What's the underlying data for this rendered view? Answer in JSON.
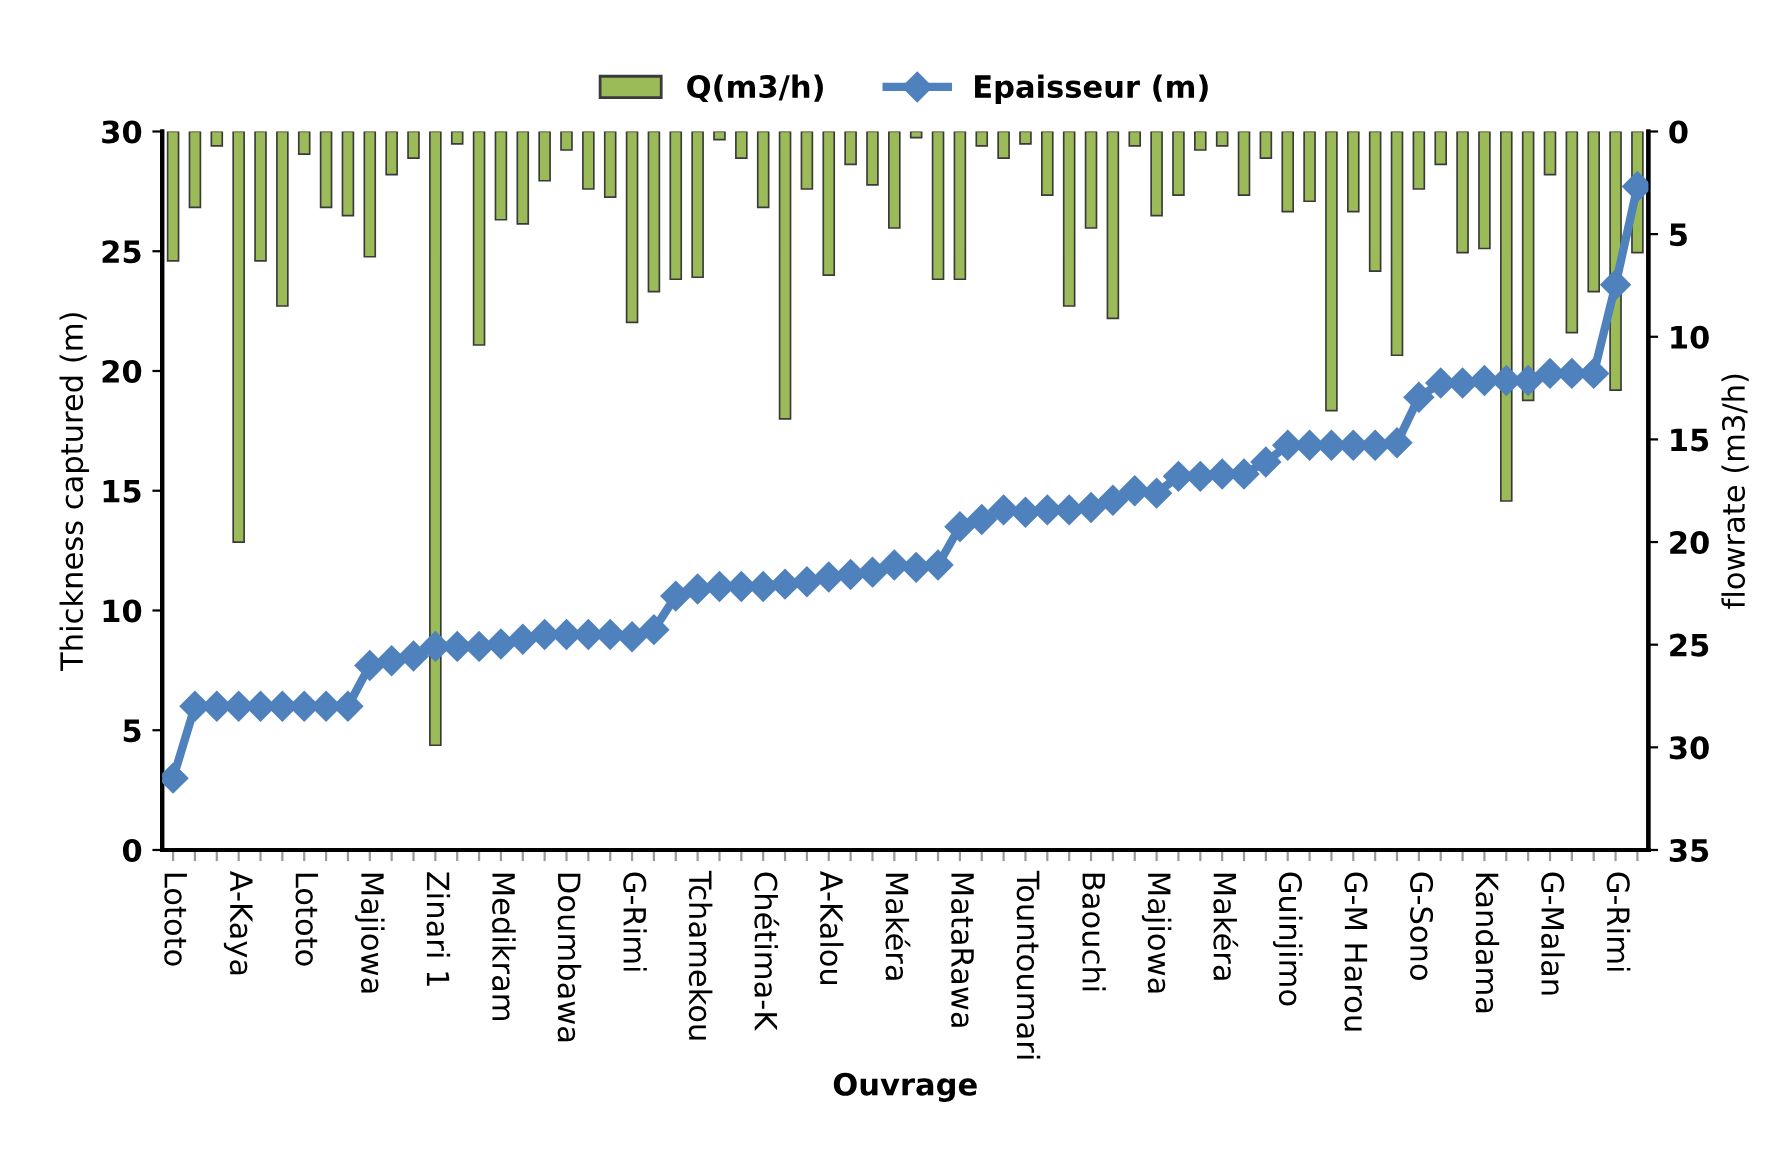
{
  "chart_data": {
    "type": "bar",
    "xlabel": "Ouvrage",
    "ylabel": "Thickness captured (m)",
    "y2label": "flowrate (m3/h)",
    "categories": [
      "Lototo",
      null,
      null,
      "A-Kaya",
      null,
      null,
      "Lototo",
      null,
      null,
      "Majiowa",
      null,
      null,
      "Zinari 1",
      null,
      null,
      "Medikram",
      null,
      null,
      "Doumbawa",
      null,
      null,
      "G-Rimi",
      null,
      null,
      "Tchamekou",
      null,
      null,
      "Chétima-K",
      null,
      null,
      "A-Kalou",
      null,
      null,
      "Makéra",
      null,
      null,
      "MataRawa",
      null,
      null,
      "Tountoumari",
      null,
      null,
      "Baouchi",
      null,
      null,
      "Majiowa",
      null,
      null,
      "Makéra",
      null,
      null,
      "Guinjimo",
      null,
      null,
      "G-M Harou",
      null,
      null,
      "G-Sono",
      null,
      null,
      "Kandama",
      null,
      null,
      "G-Malan",
      null,
      null,
      "G-Rimi",
      null
    ],
    "series": [
      {
        "name": "Q(m3/h)",
        "axis": "y2",
        "color": "#9bbb59",
        "values": [
          6.3,
          3.7,
          0.7,
          20.0,
          6.3,
          8.5,
          1.1,
          3.7,
          4.1,
          6.1,
          2.1,
          1.3,
          29.9,
          0.6,
          10.4,
          4.3,
          4.5,
          2.4,
          0.9,
          2.8,
          3.2,
          9.3,
          7.8,
          7.2,
          7.1,
          0.4,
          1.3,
          3.7,
          14.0,
          2.8,
          7.0,
          1.6,
          2.6,
          4.7,
          0.3,
          7.2,
          7.2,
          0.7,
          1.3,
          0.6,
          3.1,
          8.5,
          4.7,
          9.1,
          0.7,
          4.1,
          3.1,
          0.9,
          0.7,
          3.1,
          1.3,
          3.9,
          3.4,
          13.6,
          3.9,
          6.8,
          10.9,
          2.8,
          1.6,
          5.9,
          5.7,
          18.0,
          13.1,
          2.1,
          9.8,
          7.8,
          12.6,
          5.9
        ]
      },
      {
        "name": "Epaisseur (m)",
        "type": "line",
        "color": "#4f81bd",
        "marker": "diamond",
        "values": [
          3.0,
          6.0,
          6.0,
          6.0,
          6.0,
          6.0,
          6.0,
          6.0,
          6.0,
          7.7,
          7.9,
          8.1,
          8.5,
          8.5,
          8.5,
          8.6,
          8.8,
          9.0,
          9.0,
          9.0,
          9.0,
          8.9,
          9.2,
          10.6,
          10.9,
          11.0,
          11.0,
          11.0,
          11.1,
          11.2,
          11.4,
          11.5,
          11.6,
          11.9,
          11.8,
          11.9,
          13.5,
          13.8,
          14.2,
          14.1,
          14.2,
          14.2,
          14.3,
          14.6,
          15.0,
          14.9,
          15.6,
          15.6,
          15.7,
          15.7,
          16.2,
          16.9,
          16.9,
          16.9,
          16.9,
          16.9,
          17.0,
          18.9,
          19.5,
          19.5,
          19.6,
          19.6,
          19.6,
          19.9,
          19.9,
          19.9,
          23.6,
          27.7
        ]
      }
    ],
    "ylim": [
      0,
      30
    ],
    "yticks": [
      0,
      5,
      10,
      15,
      20,
      25,
      30
    ],
    "y2lim": [
      35,
      0
    ],
    "y2ticks": [
      0,
      5,
      10,
      15,
      20,
      25,
      30,
      35
    ],
    "legend": "top",
    "grid": false
  }
}
